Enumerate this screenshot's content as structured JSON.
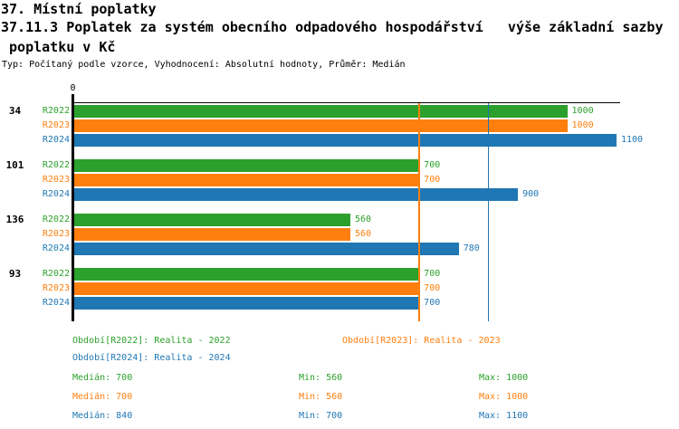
{
  "title": {
    "line1": "37. Místní poplatky",
    "line2": "37.11.3 Poplatek za systém obecního odpadového hospodářství   výše základní sazby",
    "line3": " poplatku v Kč",
    "meta": "Typ: Počítaný podle vzorce, Vyhodnocení: Absolutní hodnoty, Průměr: Medián"
  },
  "stats_labels": {
    "median": "Medián:",
    "min": "Min:",
    "max": "Max:"
  },
  "chart_data": {
    "type": "bar",
    "orientation": "horizontal-grouped",
    "zero_label": "0",
    "xlim": [
      0,
      1105
    ],
    "grid": false,
    "value_labels": true,
    "legend_position": "bottom",
    "categories": [
      "34",
      "101",
      "136",
      "93"
    ],
    "series": [
      {
        "name": "R2022",
        "legend": "Období[R2022]: Realita - 2022",
        "color": "#2ca02c",
        "values": [
          1000,
          700,
          560,
          700
        ],
        "median": 700,
        "min": 560,
        "max": 1000
      },
      {
        "name": "R2023",
        "legend": "Období[R2023]: Realita - 2023",
        "color": "#ff7f0e",
        "values": [
          1000,
          700,
          560,
          700
        ],
        "median": 700,
        "min": 560,
        "max": 1000
      },
      {
        "name": "R2024",
        "legend": "Období[R2024]: Realita - 2024",
        "color": "#1f77b4",
        "values": [
          1100,
          900,
          780,
          700
        ],
        "median": 840,
        "min": 700,
        "max": 1100
      }
    ],
    "median_lines": [
      {
        "series": "R2022",
        "value": 700,
        "color": "#2ca02c"
      },
      {
        "series": "R2024",
        "value": 840,
        "color": "#1f77b4"
      },
      {
        "series": "R2023",
        "value": 700,
        "color": "#ff7f0e"
      }
    ]
  }
}
